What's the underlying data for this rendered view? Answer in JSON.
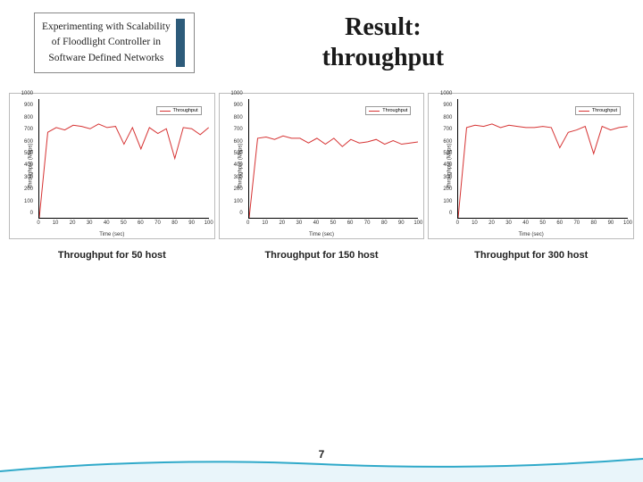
{
  "header": {
    "box_lines": [
      "Experimenting with Scalability",
      "of Floodlight Controller in",
      "Software Defined Networks"
    ],
    "accent_color": "#2d5b7a",
    "main_title_line1": "Result:",
    "main_title_line2": "throughput"
  },
  "axis": {
    "ylabel": "Throughput (Mbps)",
    "xlabel": "Time (sec)",
    "ylim": [
      0,
      1000
    ],
    "yticks": [
      0,
      100,
      200,
      300,
      400,
      500,
      600,
      700,
      800,
      900,
      1000
    ],
    "xlim": [
      0,
      100
    ],
    "xticks": [
      0,
      10,
      20,
      30,
      40,
      50,
      60,
      70,
      80,
      90,
      100
    ],
    "legend_label": "Throughput",
    "line_color": "#d63333",
    "line_width": 1,
    "label_fontsize": 6,
    "tick_fontsize": 6
  },
  "charts": [
    {
      "caption": "Throughput for 50 host",
      "x": [
        0,
        5,
        10,
        15,
        20,
        25,
        30,
        35,
        40,
        45,
        50,
        55,
        60,
        65,
        70,
        75,
        80,
        85,
        90,
        95,
        100
      ],
      "y": [
        0,
        720,
        760,
        740,
        780,
        770,
        750,
        790,
        760,
        770,
        620,
        760,
        580,
        760,
        710,
        750,
        500,
        760,
        750,
        700,
        760
      ]
    },
    {
      "caption": "Throughput for 150 host",
      "x": [
        0,
        5,
        10,
        15,
        20,
        25,
        30,
        35,
        40,
        45,
        50,
        55,
        60,
        65,
        70,
        75,
        80,
        85,
        90,
        95,
        100
      ],
      "y": [
        0,
        670,
        680,
        660,
        690,
        670,
        670,
        630,
        670,
        620,
        670,
        600,
        660,
        630,
        640,
        660,
        620,
        650,
        620,
        630,
        640
      ]
    },
    {
      "caption": "Throughput for 300 host",
      "x": [
        0,
        5,
        10,
        15,
        20,
        25,
        30,
        35,
        40,
        45,
        50,
        55,
        60,
        65,
        70,
        75,
        80,
        85,
        90,
        95,
        100
      ],
      "y": [
        0,
        760,
        780,
        770,
        790,
        760,
        780,
        770,
        760,
        760,
        770,
        760,
        590,
        720,
        740,
        770,
        540,
        770,
        740,
        760,
        770
      ]
    }
  ],
  "page_number": "7",
  "footer": {
    "curve_color": "#2fa9c9",
    "curve_fill": "#e9f5fa"
  }
}
